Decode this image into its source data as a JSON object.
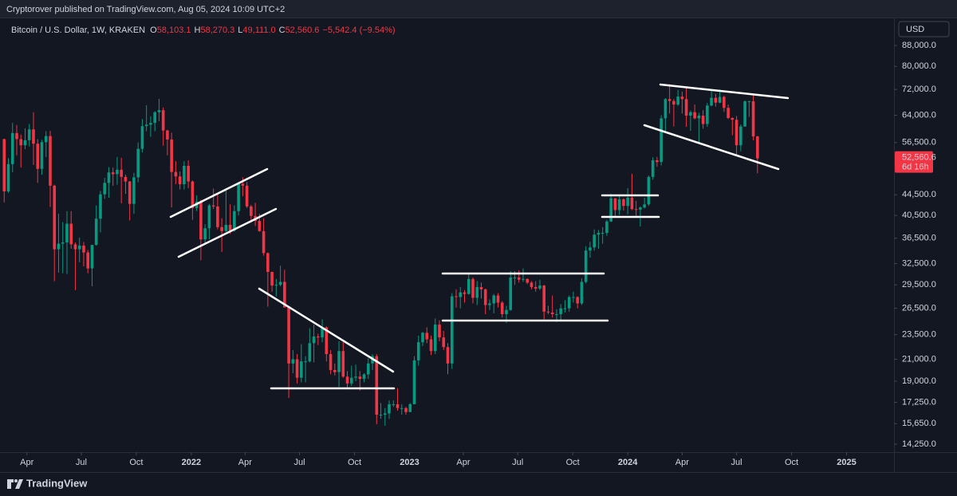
{
  "header": {
    "publisher": "Cryptorover published on TradingView.com, Aug 05, 2024 10:09 UTC+2"
  },
  "chart_data": {
    "type": "candlestick",
    "title": "Bitcoin / U.S. Dollar, 1W, KRAKEN",
    "ohlc_legend": [
      {
        "label": "O",
        "value": "58,103.1"
      },
      {
        "label": "H",
        "value": "58,270.3"
      },
      {
        "label": "L",
        "value": "49,111.0"
      },
      {
        "label": "C",
        "value": "52,560.6"
      }
    ],
    "change": "−5,542.4 (−9.54%)",
    "currency": "USD",
    "last_price_label": "52,560.6",
    "countdown": "6d 16h",
    "up_color": "#089981",
    "down_color": "#f23645",
    "grid": false,
    "log_scale": true,
    "x": [
      "2021-02-22",
      "2021-03-01",
      "2021-03-08",
      "2021-03-15",
      "2021-03-22",
      "2021-03-29",
      "2021-04-05",
      "2021-04-12",
      "2021-04-19",
      "2021-04-26",
      "2021-05-03",
      "2021-05-10",
      "2021-05-17",
      "2021-05-24",
      "2021-05-31",
      "2021-06-07",
      "2021-06-14",
      "2021-06-21",
      "2021-06-28",
      "2021-07-05",
      "2021-07-12",
      "2021-07-19",
      "2021-07-26",
      "2021-08-02",
      "2021-08-09",
      "2021-08-16",
      "2021-08-23",
      "2021-08-30",
      "2021-09-06",
      "2021-09-13",
      "2021-09-20",
      "2021-09-27",
      "2021-10-04",
      "2021-10-11",
      "2021-10-18",
      "2021-10-25",
      "2021-11-01",
      "2021-11-08",
      "2021-11-15",
      "2021-11-22",
      "2021-11-29",
      "2021-12-06",
      "2021-12-13",
      "2021-12-20",
      "2021-12-27",
      "2022-01-03",
      "2022-01-10",
      "2022-01-17",
      "2022-01-24",
      "2022-01-31",
      "2022-02-07",
      "2022-02-14",
      "2022-02-21",
      "2022-02-28",
      "2022-03-07",
      "2022-03-14",
      "2022-03-21",
      "2022-03-28",
      "2022-04-04",
      "2022-04-11",
      "2022-04-18",
      "2022-04-25",
      "2022-05-02",
      "2022-05-09",
      "2022-05-16",
      "2022-05-23",
      "2022-05-30",
      "2022-06-06",
      "2022-06-13",
      "2022-06-20",
      "2022-06-27",
      "2022-07-04",
      "2022-07-11",
      "2022-07-18",
      "2022-07-25",
      "2022-08-01",
      "2022-08-08",
      "2022-08-15",
      "2022-08-22",
      "2022-08-29",
      "2022-09-05",
      "2022-09-12",
      "2022-09-19",
      "2022-09-26",
      "2022-10-03",
      "2022-10-10",
      "2022-10-17",
      "2022-10-24",
      "2022-10-31",
      "2022-11-07",
      "2022-11-14",
      "2022-11-21",
      "2022-11-28",
      "2022-12-05",
      "2022-12-12",
      "2022-12-19",
      "2022-12-26",
      "2023-01-02",
      "2023-01-09",
      "2023-01-16",
      "2023-01-23",
      "2023-01-30",
      "2023-02-06",
      "2023-02-13",
      "2023-02-20",
      "2023-02-27",
      "2023-03-06",
      "2023-03-13",
      "2023-03-20",
      "2023-03-27",
      "2023-04-03",
      "2023-04-10",
      "2023-04-17",
      "2023-04-24",
      "2023-05-01",
      "2023-05-08",
      "2023-05-15",
      "2023-05-22",
      "2023-05-29",
      "2023-06-05",
      "2023-06-12",
      "2023-06-19",
      "2023-06-26",
      "2023-07-03",
      "2023-07-10",
      "2023-07-17",
      "2023-07-24",
      "2023-07-31",
      "2023-08-07",
      "2023-08-14",
      "2023-08-21",
      "2023-08-28",
      "2023-09-04",
      "2023-09-11",
      "2023-09-18",
      "2023-09-25",
      "2023-10-02",
      "2023-10-09",
      "2023-10-16",
      "2023-10-23",
      "2023-10-30",
      "2023-11-06",
      "2023-11-13",
      "2023-11-20",
      "2023-11-27",
      "2023-12-04",
      "2023-12-11",
      "2023-12-18",
      "2023-12-25",
      "2024-01-01",
      "2024-01-08",
      "2024-01-15",
      "2024-01-22",
      "2024-01-29",
      "2024-02-05",
      "2024-02-12",
      "2024-02-19",
      "2024-02-26",
      "2024-03-04",
      "2024-03-11",
      "2024-03-18",
      "2024-03-25",
      "2024-04-01",
      "2024-04-08",
      "2024-04-15",
      "2024-04-22",
      "2024-04-29",
      "2024-05-06",
      "2024-05-13",
      "2024-05-20",
      "2024-05-27",
      "2024-06-03",
      "2024-06-10",
      "2024-06-17",
      "2024-06-24",
      "2024-07-01",
      "2024-07-08",
      "2024-07-15",
      "2024-07-22",
      "2024-07-29",
      "2024-08-05"
    ],
    "open": [
      57400,
      45200,
      51200,
      59000,
      57400,
      55800,
      57100,
      60000,
      56200,
      50100,
      56600,
      58200,
      46400,
      34700,
      35600,
      35800,
      39000,
      35500,
      34700,
      35300,
      34200,
      31800,
      35400,
      39900,
      44600,
      47000,
      49300,
      48900,
      49900,
      48300,
      47300,
      42700,
      48200,
      54900,
      60900,
      61300,
      61800,
      64900,
      65500,
      59700,
      57300,
      49400,
      48400,
      46700,
      50800,
      47300,
      41900,
      43100,
      36300,
      38200,
      42400,
      42200,
      38400,
      37700,
      38800,
      37800,
      41300,
      46800,
      46400,
      42200,
      40400,
      39500,
      37700,
      34100,
      31300,
      29400,
      29500,
      29900,
      26600,
      20600,
      21000,
      19300,
      20800,
      20800,
      22600,
      23300,
      23200,
      24300,
      21500,
      20000,
      19800,
      21800,
      19400,
      18800,
      19300,
      19400,
      19200,
      19600,
      20600,
      21300,
      16300,
      16300,
      16400,
      17100,
      17100,
      16800,
      16800,
      16500,
      17100,
      20900,
      22700,
      23700,
      23000,
      21800,
      24600,
      23200,
      22200,
      20600,
      28000,
      27900,
      28500,
      28300,
      30300,
      27800,
      29200,
      28900,
      26900,
      27100,
      28100,
      27200,
      25800,
      26300,
      30500,
      30500,
      30200,
      30300,
      29800,
      29200,
      29000,
      29400,
      26100,
      26000,
      25800,
      25800,
      26500,
      26500,
      27900,
      27900,
      27100,
      29900,
      34500,
      35000,
      37100,
      37400,
      37400,
      39400,
      43800,
      41500,
      43600,
      42300,
      43900,
      41700,
      41600,
      42000,
      42600,
      48300,
      52100,
      51700,
      63100,
      68900,
      68300,
      67200,
      69700,
      68900,
      63900,
      64900,
      63100,
      63900,
      61500,
      66900,
      69300,
      67800,
      69600,
      66200,
      63200,
      62700,
      55800,
      60800,
      68200,
      68200,
      58103.1
    ],
    "high": [
      57500,
      52600,
      61800,
      61200,
      58600,
      60300,
      61500,
      64900,
      57400,
      57200,
      59500,
      59600,
      46600,
      40800,
      39300,
      41300,
      41300,
      35800,
      36600,
      35900,
      34600,
      35400,
      42400,
      45300,
      48100,
      50500,
      50400,
      52900,
      52700,
      48800,
      47400,
      49200,
      56500,
      62900,
      67000,
      63700,
      65200,
      69000,
      66300,
      59900,
      59100,
      51900,
      49500,
      51900,
      52100,
      47500,
      44400,
      43500,
      38900,
      42700,
      45800,
      44700,
      40000,
      45400,
      42600,
      42400,
      47000,
      48200,
      47200,
      42500,
      42900,
      40800,
      40000,
      34200,
      31300,
      30300,
      32200,
      31600,
      26800,
      21900,
      21500,
      22500,
      21300,
      24200,
      24600,
      23600,
      25200,
      24400,
      21900,
      20600,
      22800,
      22700,
      19900,
      20400,
      20500,
      19900,
      19700,
      21100,
      21500,
      21500,
      17200,
      16800,
      17400,
      17400,
      18400,
      17100,
      16900,
      17200,
      21300,
      23400,
      23800,
      24300,
      23400,
      25300,
      25100,
      23900,
      22600,
      28400,
      28900,
      29200,
      28800,
      31000,
      30500,
      30000,
      29800,
      29000,
      27600,
      28300,
      28400,
      27400,
      26800,
      31400,
      31400,
      31500,
      31800,
      30400,
      30000,
      30000,
      30200,
      29500,
      26800,
      28100,
      26400,
      27000,
      27500,
      28100,
      28600,
      28000,
      30400,
      35200,
      35900,
      38000,
      37900,
      38400,
      39700,
      44700,
      43800,
      44400,
      43800,
      45900,
      49000,
      43300,
      42200,
      43900,
      48600,
      52800,
      52900,
      64000,
      69200,
      73800,
      68900,
      71800,
      71300,
      72800,
      65400,
      67200,
      64700,
      65500,
      67700,
      71900,
      70600,
      72000,
      70000,
      67200,
      63400,
      63800,
      61400,
      68500,
      68400,
      70100,
      58270.3
    ],
    "low": [
      43000,
      44900,
      49300,
      53300,
      50400,
      54800,
      55500,
      51000,
      47000,
      48800,
      52900,
      42100,
      30000,
      31200,
      31100,
      31000,
      34800,
      28800,
      32700,
      32100,
      31100,
      29300,
      35300,
      37500,
      43700,
      43900,
      46400,
      46600,
      42800,
      44700,
      39600,
      40800,
      47100,
      54000,
      59500,
      58000,
      59500,
      62300,
      55700,
      53300,
      42000,
      46700,
      45600,
      45600,
      45900,
      39700,
      41300,
      33000,
      35700,
      36300,
      41700,
      38000,
      34300,
      37600,
      37200,
      37600,
      40500,
      44200,
      41900,
      39200,
      38600,
      37600,
      33700,
      26700,
      28600,
      28000,
      29300,
      26600,
      17600,
      19700,
      18800,
      18900,
      18900,
      20700,
      20700,
      22400,
      22700,
      20800,
      19600,
      19500,
      18500,
      19300,
      18300,
      18600,
      19000,
      18200,
      18900,
      19200,
      20000,
      15600,
      16000,
      15500,
      16000,
      16900,
      16600,
      16300,
      16300,
      16500,
      17100,
      20400,
      22300,
      22600,
      21400,
      21500,
      22800,
      21900,
      19600,
      20100,
      26600,
      26500,
      27200,
      28200,
      27100,
      26900,
      27700,
      25800,
      26300,
      25900,
      26600,
      25400,
      24800,
      26200,
      29500,
      29800,
      29900,
      29600,
      28900,
      28600,
      28800,
      25200,
      25800,
      25400,
      24900,
      25100,
      26000,
      26100,
      27200,
      26500,
      26900,
      29700,
      33400,
      34500,
      34800,
      35600,
      36900,
      39300,
      40200,
      40600,
      41400,
      40700,
      41500,
      40300,
      38500,
      41800,
      42300,
      47700,
      50600,
      50900,
      59000,
      64500,
      60800,
      66800,
      64500,
      60700,
      59600,
      62800,
      56500,
      60200,
      60700,
      66700,
      66600,
      67600,
      65000,
      62900,
      58400,
      53500,
      54300,
      60700,
      63500,
      57100,
      49111.0
    ],
    "close": [
      45200,
      51200,
      59000,
      57400,
      55800,
      57100,
      60000,
      56200,
      50100,
      56600,
      58200,
      46400,
      34700,
      35600,
      35800,
      39000,
      35500,
      34700,
      35300,
      34200,
      31800,
      35400,
      39900,
      44600,
      47000,
      49300,
      48900,
      49900,
      48300,
      47300,
      42700,
      48200,
      54900,
      60900,
      61300,
      61800,
      64900,
      65500,
      59700,
      57300,
      49400,
      48400,
      46700,
      50800,
      47300,
      41900,
      43100,
      36300,
      38200,
      42400,
      42200,
      38400,
      37700,
      38800,
      37800,
      41300,
      46800,
      46400,
      42200,
      40400,
      39500,
      37700,
      34100,
      31300,
      29400,
      29500,
      29900,
      26600,
      20600,
      21000,
      19300,
      20800,
      20800,
      22600,
      23300,
      23200,
      24300,
      21500,
      20000,
      19800,
      21800,
      19400,
      18800,
      19300,
      19400,
      19200,
      19600,
      20600,
      21300,
      16300,
      16300,
      16400,
      17100,
      17100,
      16800,
      16800,
      16500,
      17100,
      20900,
      22700,
      23700,
      23000,
      21800,
      24600,
      23200,
      22200,
      20600,
      28000,
      27900,
      28500,
      28300,
      30300,
      27800,
      29200,
      28900,
      26900,
      27100,
      28100,
      27200,
      25800,
      26300,
      30500,
      30500,
      30200,
      30300,
      29800,
      29200,
      29000,
      29400,
      26100,
      26000,
      25800,
      25800,
      26500,
      26500,
      27900,
      27900,
      27100,
      29900,
      34500,
      35000,
      37100,
      37400,
      37400,
      39400,
      43800,
      41500,
      43600,
      42300,
      43900,
      41700,
      41600,
      42000,
      42600,
      48300,
      52100,
      51700,
      63100,
      68900,
      68300,
      67200,
      69700,
      68900,
      63900,
      64900,
      63100,
      63900,
      61500,
      66900,
      69300,
      67800,
      69600,
      66200,
      63200,
      62700,
      55800,
      60800,
      68200,
      68200,
      58100,
      52560.6
    ],
    "xlim": [
      "2021-02-15",
      "2025-03-20"
    ],
    "xticks": [
      {
        "value": "2021-04-01",
        "label": "Apr"
      },
      {
        "value": "2021-07-01",
        "label": "Jul"
      },
      {
        "value": "2021-10-01",
        "label": "Oct"
      },
      {
        "value": "2022-01-01",
        "label": "2022"
      },
      {
        "value": "2022-04-01",
        "label": "Apr"
      },
      {
        "value": "2022-07-01",
        "label": "Jul"
      },
      {
        "value": "2022-10-01",
        "label": "Oct"
      },
      {
        "value": "2023-01-01",
        "label": "2023"
      },
      {
        "value": "2023-04-01",
        "label": "Apr"
      },
      {
        "value": "2023-07-01",
        "label": "Jul"
      },
      {
        "value": "2023-10-01",
        "label": "Oct"
      },
      {
        "value": "2024-01-01",
        "label": "2024"
      },
      {
        "value": "2024-04-01",
        "label": "Apr"
      },
      {
        "value": "2024-07-01",
        "label": "Jul"
      },
      {
        "value": "2024-10-01",
        "label": "Oct"
      },
      {
        "value": "2025-01-01",
        "label": "2025"
      }
    ],
    "ylim": [
      13740,
      100000
    ],
    "yticks": [
      {
        "value": 88000,
        "label": "88,000.0"
      },
      {
        "value": 80000,
        "label": "80,000.0"
      },
      {
        "value": 72000,
        "label": "72,000.0"
      },
      {
        "value": 64000,
        "label": "64,000.0"
      },
      {
        "value": 56500,
        "label": "56,500.0"
      },
      {
        "value": 44500,
        "label": "44,500.0"
      },
      {
        "value": 40500,
        "label": "40,500.0"
      },
      {
        "value": 36500,
        "label": "36,500.0"
      },
      {
        "value": 32500,
        "label": "32,500.0"
      },
      {
        "value": 29500,
        "label": "29,500.0"
      },
      {
        "value": 26500,
        "label": "26,500.0"
      },
      {
        "value": 23500,
        "label": "23,500.0"
      },
      {
        "value": 21000,
        "label": "21,000.0"
      },
      {
        "value": 19000,
        "label": "19,000.0"
      },
      {
        "value": 17250,
        "label": "17,250.0"
      },
      {
        "value": 15650,
        "label": "15,650.0"
      },
      {
        "value": 14250,
        "label": "14,250.0"
      }
    ]
  },
  "footer": {
    "brand": "TradingView"
  }
}
